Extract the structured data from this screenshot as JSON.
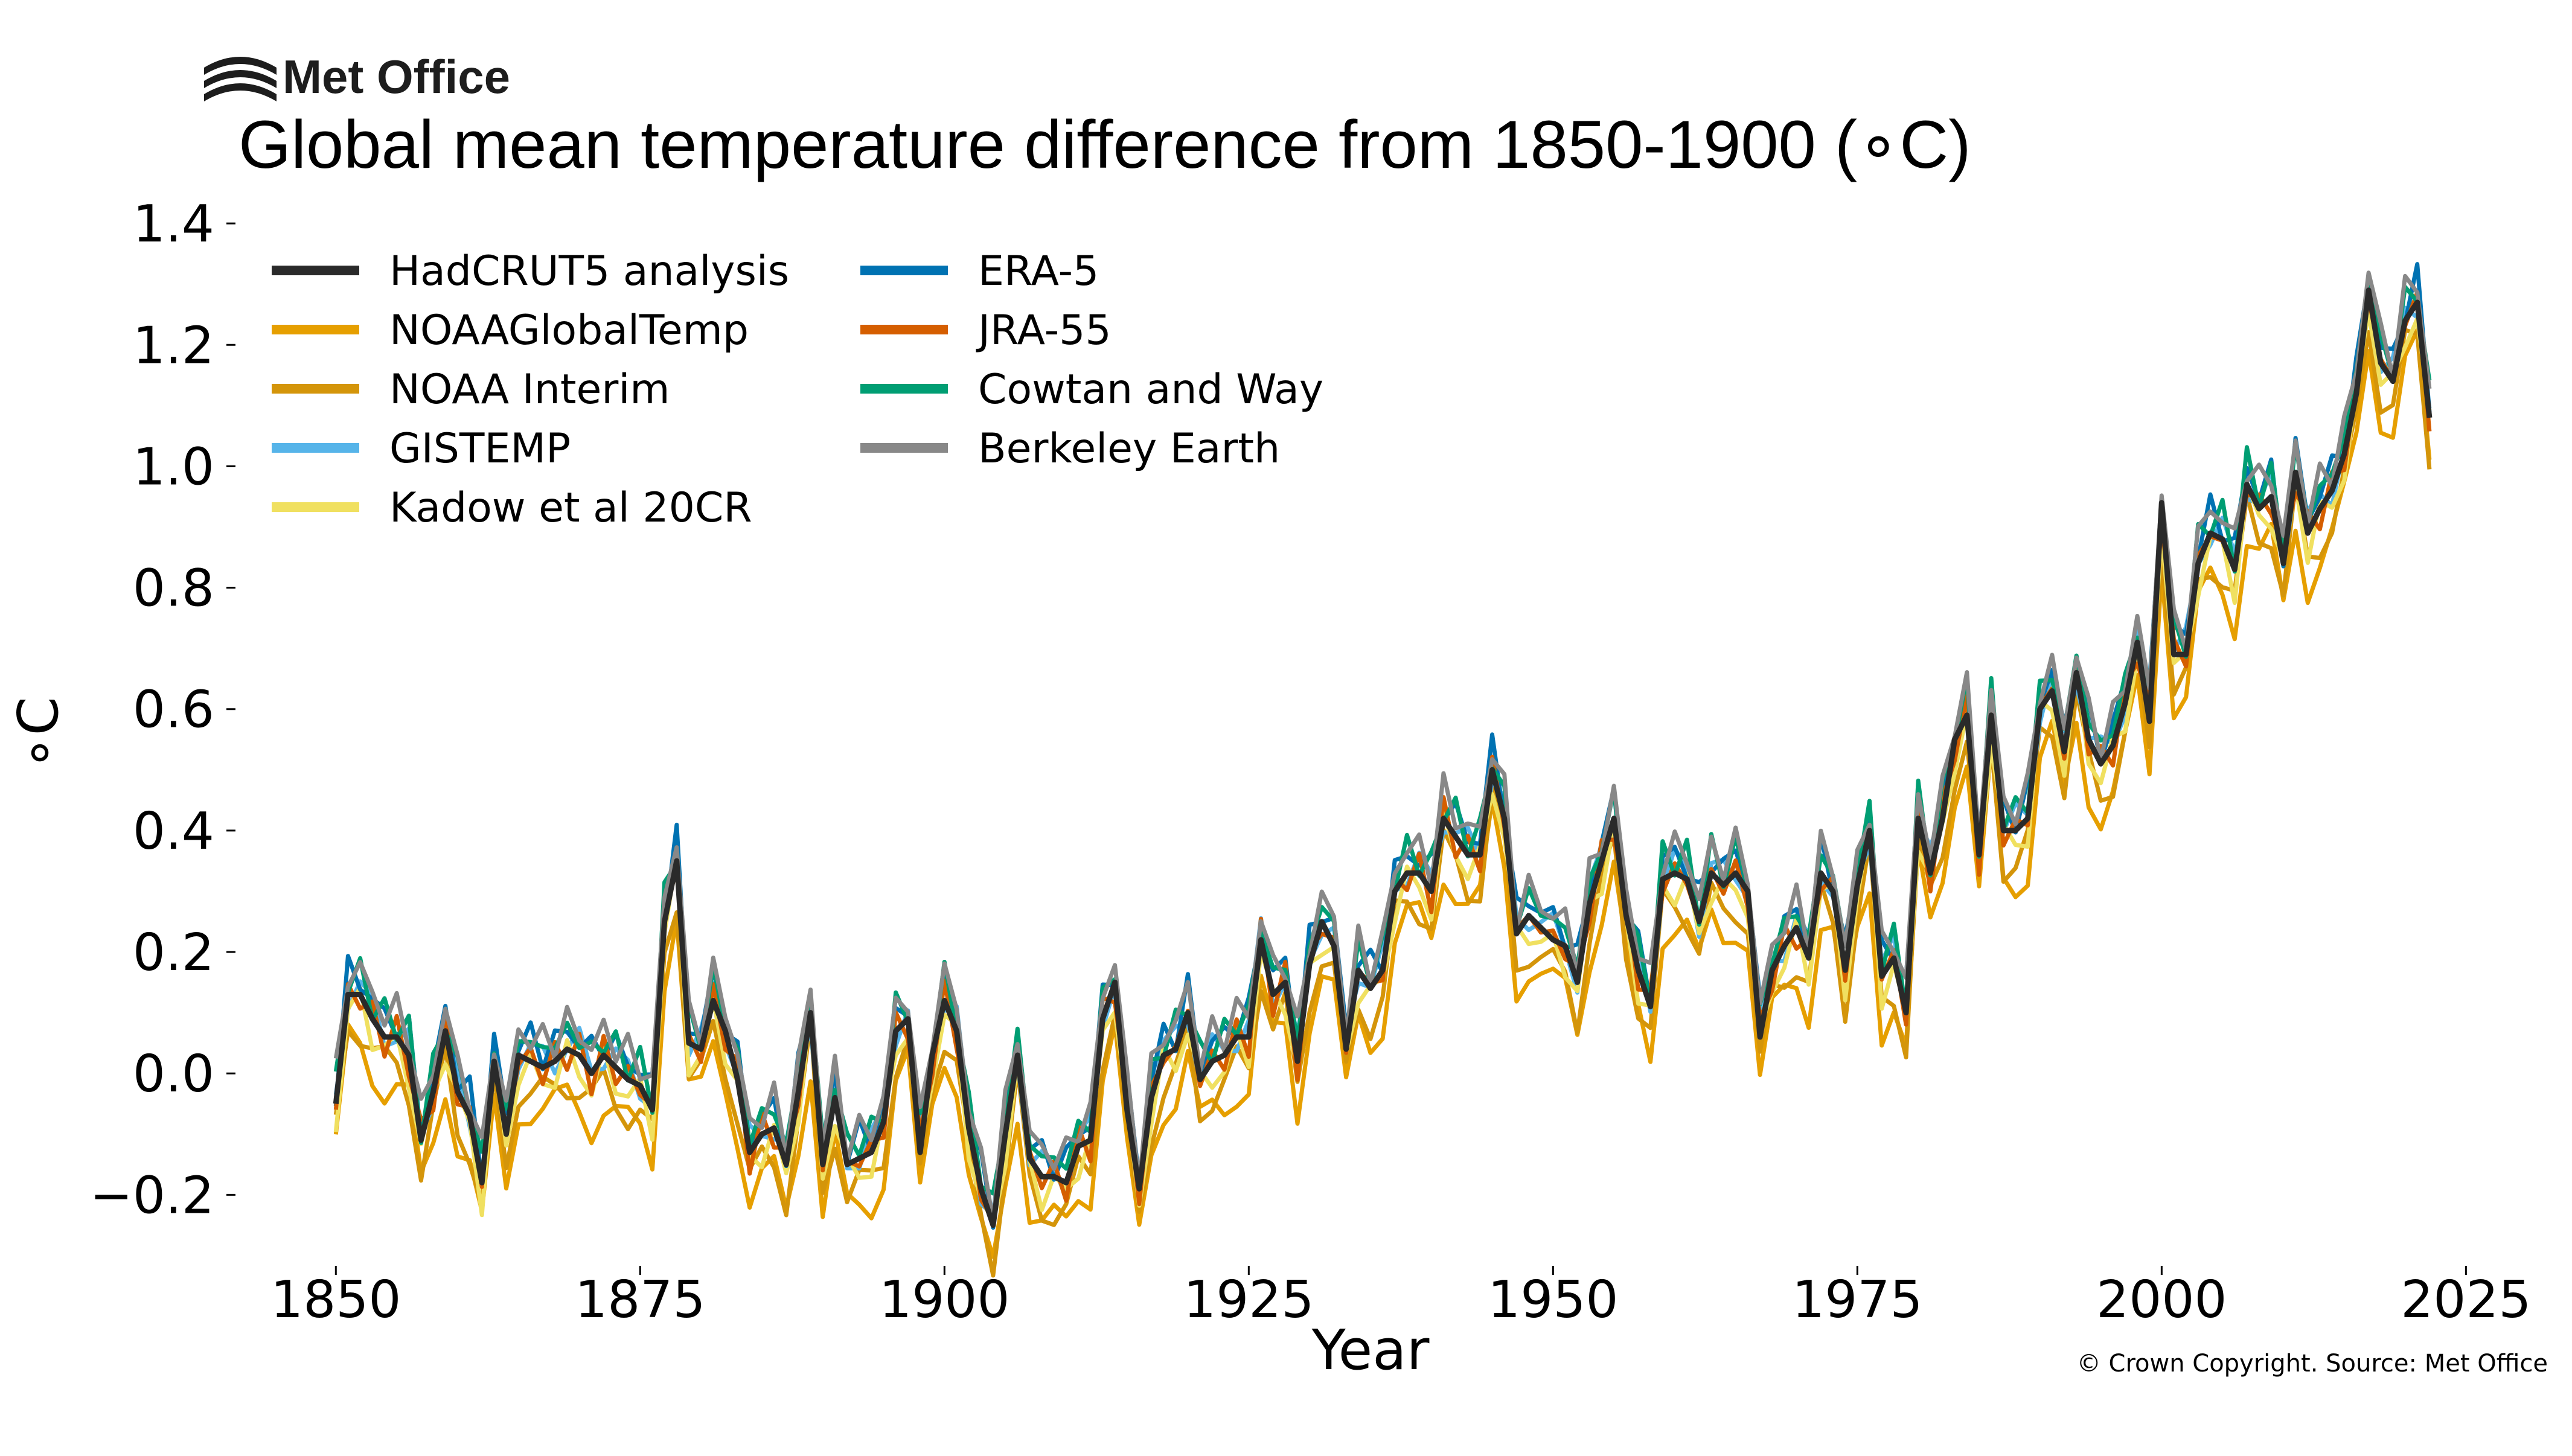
{
  "logo": {
    "text": "Met Office"
  },
  "copyright": "© Crown Copyright. Source: Met Office",
  "chart_data": {
    "type": "line",
    "title": "Global mean temperature difference from 1850-1900 (∘C)",
    "xlabel": "Year",
    "ylabel": "∘C",
    "xlim": [
      1842,
      2029
    ],
    "ylim": [
      -0.31,
      1.42
    ],
    "xticks": [
      "1850",
      "1875",
      "1900",
      "1925",
      "1950",
      "1975",
      "2000",
      "2025"
    ],
    "yticks": [
      "−0.2",
      "0.0",
      "0.2",
      "0.4",
      "0.6",
      "0.8",
      "1.0",
      "1.2",
      "1.4"
    ],
    "grid": false,
    "legend_position": "top-left",
    "hadcrut5_anomalies": {
      "start_year": 1850,
      "values": [
        -0.05,
        0.13,
        0.13,
        0.09,
        0.06,
        0.06,
        0.03,
        -0.11,
        -0.03,
        0.07,
        -0.03,
        -0.07,
        -0.18,
        0.02,
        -0.1,
        0.03,
        0.02,
        0.01,
        0.02,
        0.04,
        0.03,
        0.0,
        0.03,
        0.01,
        -0.01,
        -0.02,
        -0.06,
        0.25,
        0.35,
        0.05,
        0.04,
        0.12,
        0.07,
        -0.01,
        -0.13,
        -0.1,
        -0.09,
        -0.15,
        -0.03,
        0.1,
        -0.15,
        -0.04,
        -0.15,
        -0.14,
        -0.13,
        -0.08,
        0.07,
        0.09,
        -0.13,
        0.03,
        0.12,
        0.07,
        -0.09,
        -0.19,
        -0.25,
        -0.1,
        0.03,
        -0.14,
        -0.17,
        -0.17,
        -0.18,
        -0.12,
        -0.11,
        0.09,
        0.15,
        -0.06,
        -0.19,
        -0.04,
        0.03,
        0.04,
        0.1,
        -0.01,
        0.02,
        0.03,
        0.06,
        0.06,
        0.22,
        0.13,
        0.15,
        0.02,
        0.18,
        0.25,
        0.21,
        0.04,
        0.17,
        0.14,
        0.17,
        0.3,
        0.33,
        0.33,
        0.3,
        0.42,
        0.39,
        0.36,
        0.36,
        0.5,
        0.42,
        0.23,
        0.26,
        0.24,
        0.22,
        0.21,
        0.15,
        0.28,
        0.35,
        0.42,
        0.26,
        0.17,
        0.11,
        0.32,
        0.33,
        0.32,
        0.25,
        0.33,
        0.31,
        0.33,
        0.3,
        0.06,
        0.17,
        0.21,
        0.24,
        0.19,
        0.33,
        0.3,
        0.17,
        0.31,
        0.4,
        0.16,
        0.19,
        0.1,
        0.42,
        0.33,
        0.42,
        0.55,
        0.59,
        0.36,
        0.59,
        0.4,
        0.4,
        0.42,
        0.6,
        0.63,
        0.53,
        0.66,
        0.55,
        0.51,
        0.54,
        0.61,
        0.71,
        0.58,
        0.94,
        0.69,
        0.69,
        0.84,
        0.89,
        0.88,
        0.83,
        0.97,
        0.93,
        0.95,
        0.84,
        0.99,
        0.89,
        0.93,
        0.96,
        1.02,
        1.12,
        1.29,
        1.17,
        1.14,
        1.24,
        1.27,
        1.08
      ]
    },
    "series": [
      {
        "name": "HadCRUT5 analysis",
        "color": "#2a2a2a",
        "offset": 0.0,
        "scale": 1.0
      },
      {
        "name": "NOAAGlobalTemp",
        "color": "#e69f00",
        "offset": -0.08,
        "scale": 1.0
      },
      {
        "name": "NOAA Interim",
        "color": "#d4950a",
        "offset": -0.05,
        "scale": 1.0
      },
      {
        "name": "GISTEMP",
        "color": "#56b4e9",
        "offset": 0.01,
        "scale": 1.0
      },
      {
        "name": "Kadow et al 20CR",
        "color": "#f0e060",
        "offset": -0.02,
        "scale": 1.0
      },
      {
        "name": "ERA-5",
        "color": "#0072b2",
        "offset": 0.03,
        "scale": 1.0
      },
      {
        "name": "JRA-55",
        "color": "#d55e00",
        "offset": 0.0,
        "scale": 1.0
      },
      {
        "name": "Cowtan and Way",
        "color": "#009e73",
        "offset": 0.03,
        "scale": 1.0
      },
      {
        "name": "Berkeley Earth",
        "color": "#888888",
        "offset": 0.04,
        "scale": 1.0
      }
    ]
  }
}
